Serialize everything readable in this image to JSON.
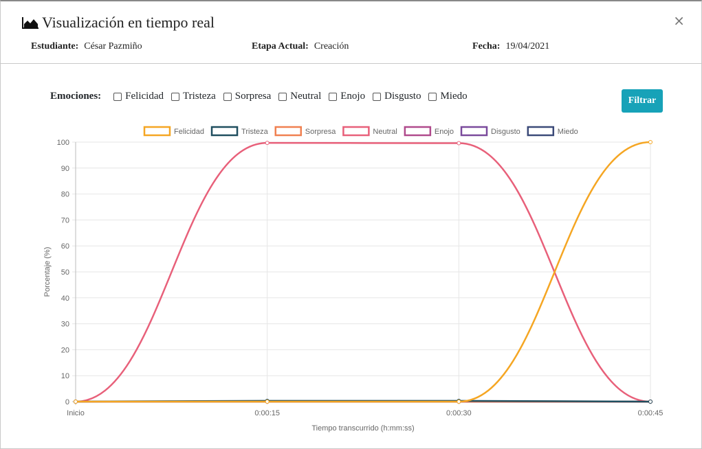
{
  "modal": {
    "title": "Visualización en tiempo real",
    "close_icon": "×",
    "title_icon": "area-chart-icon"
  },
  "meta": {
    "student_label": "Estudiante:",
    "student_value": "César Pazmiño",
    "stage_label": "Etapa Actual:",
    "stage_value": "Creación",
    "date_label": "Fecha:",
    "date_value": "19/04/2021"
  },
  "filters": {
    "label": "Emociones:",
    "options": [
      "Felicidad",
      "Tristeza",
      "Sorpresa",
      "Neutral",
      "Enojo",
      "Disgusto",
      "Miedo"
    ],
    "button_label": "Filtrar"
  },
  "chart_data": {
    "type": "line",
    "categories": [
      "Inicio",
      "0:00:15",
      "0:00:30",
      "0:00:45"
    ],
    "xlabel": "Tiempo transcurrido (h:mm:ss)",
    "ylabel": "Porcentaje (%)",
    "ylim": [
      0,
      100
    ],
    "yticks": [
      0,
      10,
      20,
      30,
      40,
      50,
      60,
      70,
      80,
      90,
      100
    ],
    "grid": true,
    "legend_position": "top",
    "series": [
      {
        "name": "Felicidad",
        "color": "#f5a623",
        "values": [
          0,
          0,
          0,
          100
        ]
      },
      {
        "name": "Tristeza",
        "color": "#1f4e5f",
        "values": [
          0,
          0.3,
          0.3,
          0
        ]
      },
      {
        "name": "Sorpresa",
        "color": "#f08050",
        "values": [
          0,
          0,
          0,
          0
        ]
      },
      {
        "name": "Neutral",
        "color": "#e8607a",
        "values": [
          0,
          99.7,
          99.6,
          0
        ]
      },
      {
        "name": "Enojo",
        "color": "#b04a8c",
        "values": [
          0,
          0,
          0,
          0
        ]
      },
      {
        "name": "Disgusto",
        "color": "#7a4a9c",
        "values": [
          0,
          0,
          0,
          0
        ]
      },
      {
        "name": "Miedo",
        "color": "#3b4a78",
        "values": [
          0,
          0,
          0,
          0
        ]
      }
    ]
  }
}
